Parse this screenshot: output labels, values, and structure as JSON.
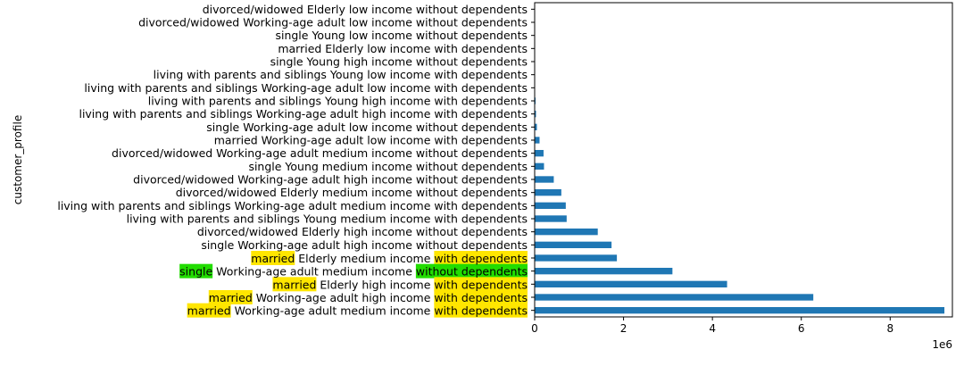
{
  "chart_data": {
    "type": "bar",
    "orientation": "horizontal",
    "ylabel": "customer_profile",
    "xlabel": "",
    "x_scale_label": "1e6",
    "xlim": [
      0,
      9.4
    ],
    "x_ticks": [
      "0",
      "2",
      "4",
      "6",
      "8"
    ],
    "bar_color": "#1f77b4",
    "grid": false,
    "categories": [
      "married Working-age adult medium income with dependents",
      "married Working-age adult high income with dependents",
      "married Elderly high income with dependents",
      "single Working-age adult medium income without dependents",
      "married Elderly medium income with dependents",
      "single Working-age adult high income without dependents",
      "divorced/widowed Elderly high income without dependents",
      "living with parents and siblings Young medium income with dependents",
      "living with parents and siblings Working-age adult medium income with dependents",
      "divorced/widowed Elderly medium income without dependents",
      "divorced/widowed Working-age adult high income without dependents",
      "single Young medium income without dependents",
      "divorced/widowed Working-age adult medium income without dependents",
      "married Working-age adult low income with dependents",
      "single Working-age adult low income without dependents",
      "living with parents and siblings Working-age adult high income with dependents",
      "living with parents and siblings Young high income with dependents",
      "living with parents and siblings Working-age adult low income with dependents",
      "living with parents and siblings Young low income with dependents",
      "single Young high income without dependents",
      "married Elderly low income with dependents",
      "single Young low income without dependents",
      "divorced/widowed Working-age adult low income without dependents",
      "divorced/widowed Elderly low income without dependents"
    ],
    "values": [
      9.22,
      6.27,
      4.33,
      3.1,
      1.85,
      1.73,
      1.42,
      0.72,
      0.7,
      0.6,
      0.43,
      0.21,
      0.2,
      0.11,
      0.05,
      0.03,
      0.02,
      0.01,
      0.005,
      0.004,
      0.003,
      0.002,
      0.001,
      0.001
    ],
    "highlights": [
      {
        "row": 0,
        "segments": [
          {
            "text": "married",
            "color": "#ffe600"
          },
          {
            "text": " Working-age adult medium income "
          },
          {
            "text": "with dependents",
            "color": "#ffe600"
          }
        ]
      },
      {
        "row": 1,
        "segments": [
          {
            "text": "married",
            "color": "#ffe600"
          },
          {
            "text": " Working-age adult high income "
          },
          {
            "text": "with dependents",
            "color": "#ffe600"
          }
        ]
      },
      {
        "row": 2,
        "segments": [
          {
            "text": "married",
            "color": "#ffe600"
          },
          {
            "text": " Elderly high income "
          },
          {
            "text": "with dependents",
            "color": "#ffe600"
          }
        ]
      },
      {
        "row": 3,
        "segments": [
          {
            "text": "single",
            "color": "#22dd00"
          },
          {
            "text": " Working-age adult medium income "
          },
          {
            "text": "without dependents",
            "color": "#22dd00"
          }
        ]
      },
      {
        "row": 4,
        "segments": [
          {
            "text": "married",
            "color": "#ffe600"
          },
          {
            "text": " Elderly medium income "
          },
          {
            "text": "with dependents",
            "color": "#ffe600"
          }
        ]
      }
    ]
  }
}
